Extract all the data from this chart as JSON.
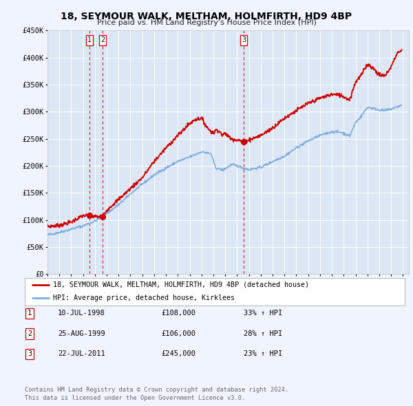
{
  "title": "18, SEYMOUR WALK, MELTHAM, HOLMFIRTH, HD9 4BP",
  "subtitle": "Price paid vs. HM Land Registry's House Price Index (HPI)",
  "background_color": "#f0f4ff",
  "plot_bg_color": "#dce6f5",
  "legend_entries": [
    "18, SEYMOUR WALK, MELTHAM, HOLMFIRTH, HD9 4BP (detached house)",
    "HPI: Average price, detached house, Kirklees"
  ],
  "sale_color": "#cc0000",
  "hpi_color": "#7aaddc",
  "sale_points": [
    {
      "year": 1998.53,
      "price": 108000,
      "label": "1"
    },
    {
      "year": 1999.65,
      "price": 106000,
      "label": "2"
    },
    {
      "year": 2011.55,
      "price": 245000,
      "label": "3"
    }
  ],
  "vline_years": [
    1998.53,
    1999.65,
    2011.55
  ],
  "table_rows": [
    {
      "num": "1",
      "date": "10-JUL-1998",
      "price": "£108,000",
      "pct": "33% ↑ HPI"
    },
    {
      "num": "2",
      "date": "25-AUG-1999",
      "price": "£106,000",
      "pct": "28% ↑ HPI"
    },
    {
      "num": "3",
      "date": "22-JUL-2011",
      "price": "£245,000",
      "pct": "23% ↑ HPI"
    }
  ],
  "footer": "Contains HM Land Registry data © Crown copyright and database right 2024.\nThis data is licensed under the Open Government Licence v3.0.",
  "ylim": [
    0,
    450000
  ],
  "yticks": [
    0,
    50000,
    100000,
    150000,
    200000,
    250000,
    300000,
    350000,
    400000,
    450000
  ],
  "ytick_labels": [
    "£0",
    "£50K",
    "£100K",
    "£150K",
    "£200K",
    "£250K",
    "£300K",
    "£350K",
    "£400K",
    "£450K"
  ],
  "xlim_start": 1995.0,
  "xlim_end": 2025.5
}
